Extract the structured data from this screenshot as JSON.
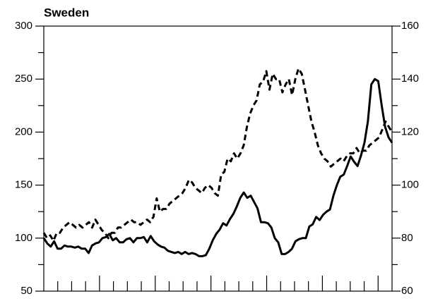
{
  "chart_data": {
    "type": "line",
    "title": "Sweden",
    "ylim": [
      50,
      300
    ],
    "yticks": [
      50,
      100,
      150,
      200,
      250,
      300
    ],
    "y2lim": [
      60,
      160
    ],
    "y2ticks": [
      60,
      80,
      100,
      120,
      140,
      160
    ],
    "series": [
      {
        "color": "#000000",
        "dash": false,
        "axis": "y",
        "values": [
          100,
          95,
          92,
          97,
          90,
          90,
          93,
          92,
          92,
          91,
          92,
          90,
          90,
          86,
          93,
          95,
          96,
          100,
          101,
          104,
          98,
          100,
          96,
          96,
          99,
          100,
          96,
          100,
          100,
          101,
          96,
          102,
          97,
          94,
          92,
          91,
          88,
          87,
          86,
          87,
          85,
          87,
          85,
          86,
          85,
          83,
          83,
          84,
          90,
          98,
          104,
          108,
          114,
          112,
          118,
          123,
          130,
          138,
          143,
          138,
          140,
          134,
          128,
          115,
          115,
          114,
          110,
          100,
          96,
          85,
          85,
          87,
          90,
          97,
          99,
          100,
          100,
          111,
          113,
          120,
          117,
          122,
          125,
          127,
          140,
          150,
          158,
          160,
          168,
          177,
          172,
          168,
          178,
          190,
          210,
          245,
          250,
          248,
          225,
          205,
          195,
          190
        ]
      },
      {
        "color": "#000000",
        "dash": true,
        "axis": "y2",
        "values": [
          82,
          80,
          81,
          79,
          82,
          82,
          84,
          85,
          86,
          85,
          84,
          85,
          84,
          85,
          86,
          84,
          87,
          85,
          83,
          82,
          80,
          82,
          82,
          84,
          84,
          85,
          86,
          87,
          86,
          86,
          85,
          86,
          87,
          86,
          88,
          95,
          90,
          91,
          91,
          93,
          94,
          95,
          96,
          97,
          99,
          102,
          101,
          99,
          98,
          97,
          99,
          100,
          99,
          97,
          96,
          104,
          105,
          110,
          109,
          112,
          110,
          112,
          115,
          122,
          127,
          130,
          132,
          138,
          139,
          143,
          136,
          142,
          140,
          140,
          135,
          138,
          140,
          134,
          140,
          144,
          142,
          136,
          130,
          124,
          120,
          115,
          112,
          110,
          109,
          107,
          108,
          109,
          110,
          109,
          111,
          112,
          112,
          114,
          112,
          113,
          113,
          115,
          116,
          117,
          118,
          121,
          124,
          122,
          120
        ]
      }
    ]
  }
}
